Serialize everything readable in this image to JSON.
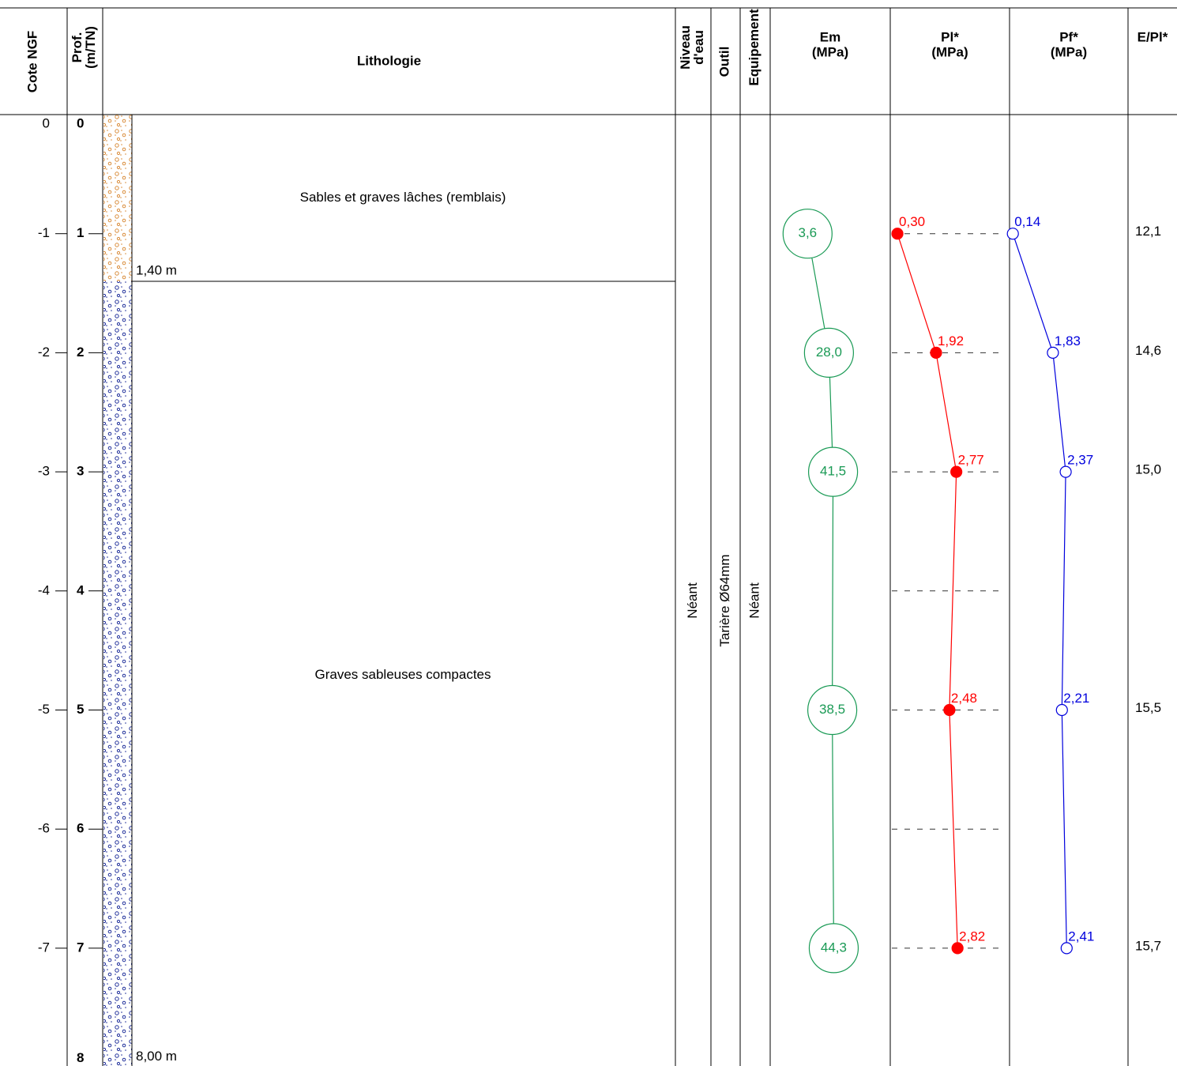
{
  "header": {
    "cote": [
      "Cote NGF"
    ],
    "prof": [
      "Prof.",
      "(m/TN)"
    ],
    "lithologie": [
      "Lithologie"
    ],
    "niveau": [
      "Niveau",
      "d'eau"
    ],
    "outil": [
      "Outil"
    ],
    "equipement": [
      "Equipement"
    ],
    "em": [
      "Em",
      "(MPa)"
    ],
    "pl": [
      "Pl*",
      "(MPa)"
    ],
    "pf": [
      "Pf*",
      "(MPa)"
    ],
    "epl": [
      "E/Pl*"
    ]
  },
  "axes": {
    "cote_ticks": [
      0,
      -1,
      -2,
      -3,
      -4,
      -5,
      -6,
      -7
    ],
    "cote_ylim": [
      0,
      -8
    ],
    "prof_ticks": [
      0,
      1,
      2,
      3,
      4,
      5,
      6,
      7,
      8
    ],
    "prof_ylim": [
      0,
      8
    ]
  },
  "layers": [
    {
      "description": "Sables et graves lâches (remblais)",
      "top": 0,
      "bottom": 1.4,
      "bottom_label": "1,40 m",
      "color": "#d98c3a"
    },
    {
      "description": "Graves sableuses compactes",
      "top": 1.4,
      "bottom": 8,
      "bottom_label": "8,00 m",
      "color": "#1f2f9a"
    }
  ],
  "columns": {
    "niveau": "Néant",
    "outil": "Tarière Ø64mm",
    "equipement": "Néant"
  },
  "tests": {
    "depths": [
      1,
      2,
      3,
      5,
      7
    ],
    "em": {
      "values": [
        3.6,
        28.0,
        41.5,
        38.5,
        44.3
      ],
      "value_labels": [
        "3,6",
        "28,0",
        "41,5",
        "38,5",
        "44,3"
      ],
      "color": "#1a9a55",
      "xlim": [
        0.1,
        10000
      ],
      "log": true
    },
    "pl": {
      "values": [
        0.3,
        1.92,
        2.77,
        2.48,
        2.82
      ],
      "value_labels": [
        "0,30",
        "1,92",
        "2,77",
        "2,48",
        "2,82"
      ],
      "color": "#ff0000",
      "xlim": [
        0,
        5
      ],
      "log": false
    },
    "pf": {
      "values": [
        0.14,
        1.83,
        2.37,
        2.21,
        2.41
      ],
      "value_labels": [
        "0,14",
        "1,83",
        "2,37",
        "2,21",
        "2,41"
      ],
      "color": "#0000dd",
      "xlim": [
        0,
        5
      ],
      "log": false
    },
    "epl": {
      "values": [
        12.1,
        14.6,
        15.0,
        15.5,
        15.7
      ],
      "value_labels": [
        "12,1",
        "14,6",
        "15,0",
        "15,5",
        "15,7"
      ]
    }
  }
}
